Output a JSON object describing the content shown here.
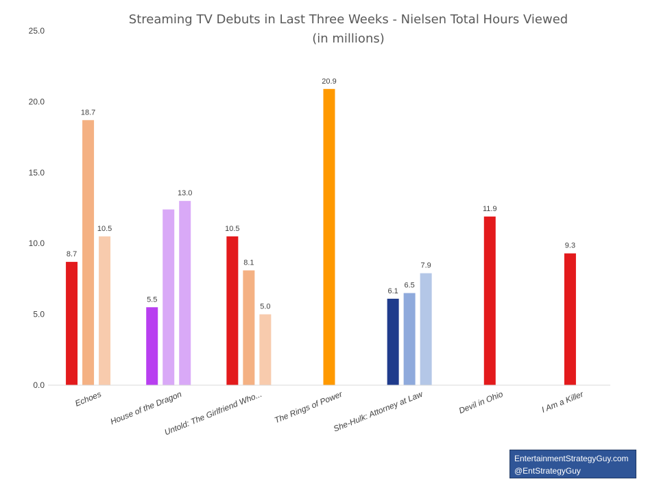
{
  "chart_data": {
    "type": "bar",
    "title": "Streaming TV Debuts in Last Three Weeks - Nielsen Total Hours Viewed",
    "subtitle": "(in millions)",
    "ylim": [
      0,
      25
    ],
    "yticks": [
      "0.0",
      "5.0",
      "10.0",
      "15.0",
      "20.0",
      "25.0"
    ],
    "grid": false,
    "categories": [
      "Echoes",
      "House of the Dragon",
      "Untold: The Girlfriend Who...",
      "The Rings of Power",
      "She-Hulk: Attorney at Law",
      "Devil in Ohio",
      "I Am a Killer"
    ],
    "groups": [
      {
        "category": "Echoes",
        "bars": [
          {
            "value": 8.7,
            "label": "8.7",
            "color": "#e31a1c"
          },
          {
            "value": 18.7,
            "label": "18.7",
            "color": "#f4b183"
          },
          {
            "value": 10.5,
            "label": "10.5",
            "color": "#f8cbad"
          }
        ]
      },
      {
        "category": "House of the Dragon",
        "bars": [
          {
            "value": 5.5,
            "label": "5.5",
            "color": "#b83ff0"
          },
          {
            "value": 12.4,
            "label": "",
            "color": "#d9a9f7"
          },
          {
            "value": 13.0,
            "label": "13.0",
            "color": "#d9a9f7"
          }
        ]
      },
      {
        "category": "Untold: The Girlfriend Who...",
        "bars": [
          {
            "value": 10.5,
            "label": "10.5",
            "color": "#e31a1c"
          },
          {
            "value": 8.1,
            "label": "8.1",
            "color": "#f4b183"
          },
          {
            "value": 5.0,
            "label": "5.0",
            "color": "#f8cbad"
          }
        ]
      },
      {
        "category": "The Rings of Power",
        "bars": [
          {
            "value": 20.9,
            "label": "20.9",
            "color": "#ff9900"
          }
        ]
      },
      {
        "category": "She-Hulk: Attorney at Law",
        "bars": [
          {
            "value": 6.1,
            "label": "6.1",
            "color": "#1f3b8c"
          },
          {
            "value": 6.5,
            "label": "6.5",
            "color": "#8faadc"
          },
          {
            "value": 7.9,
            "label": "7.9",
            "color": "#b4c7e7"
          }
        ]
      },
      {
        "category": "Devil in Ohio",
        "bars": [
          {
            "value": 11.9,
            "label": "11.9",
            "color": "#e31a1c"
          }
        ]
      },
      {
        "category": "I Am a Killer",
        "bars": [
          {
            "value": 9.3,
            "label": "9.3",
            "color": "#e31a1c"
          }
        ]
      }
    ]
  },
  "credit": {
    "line1": "EntertainmentStrategyGuy.com",
    "line2": "@EntStrategyGuy"
  }
}
